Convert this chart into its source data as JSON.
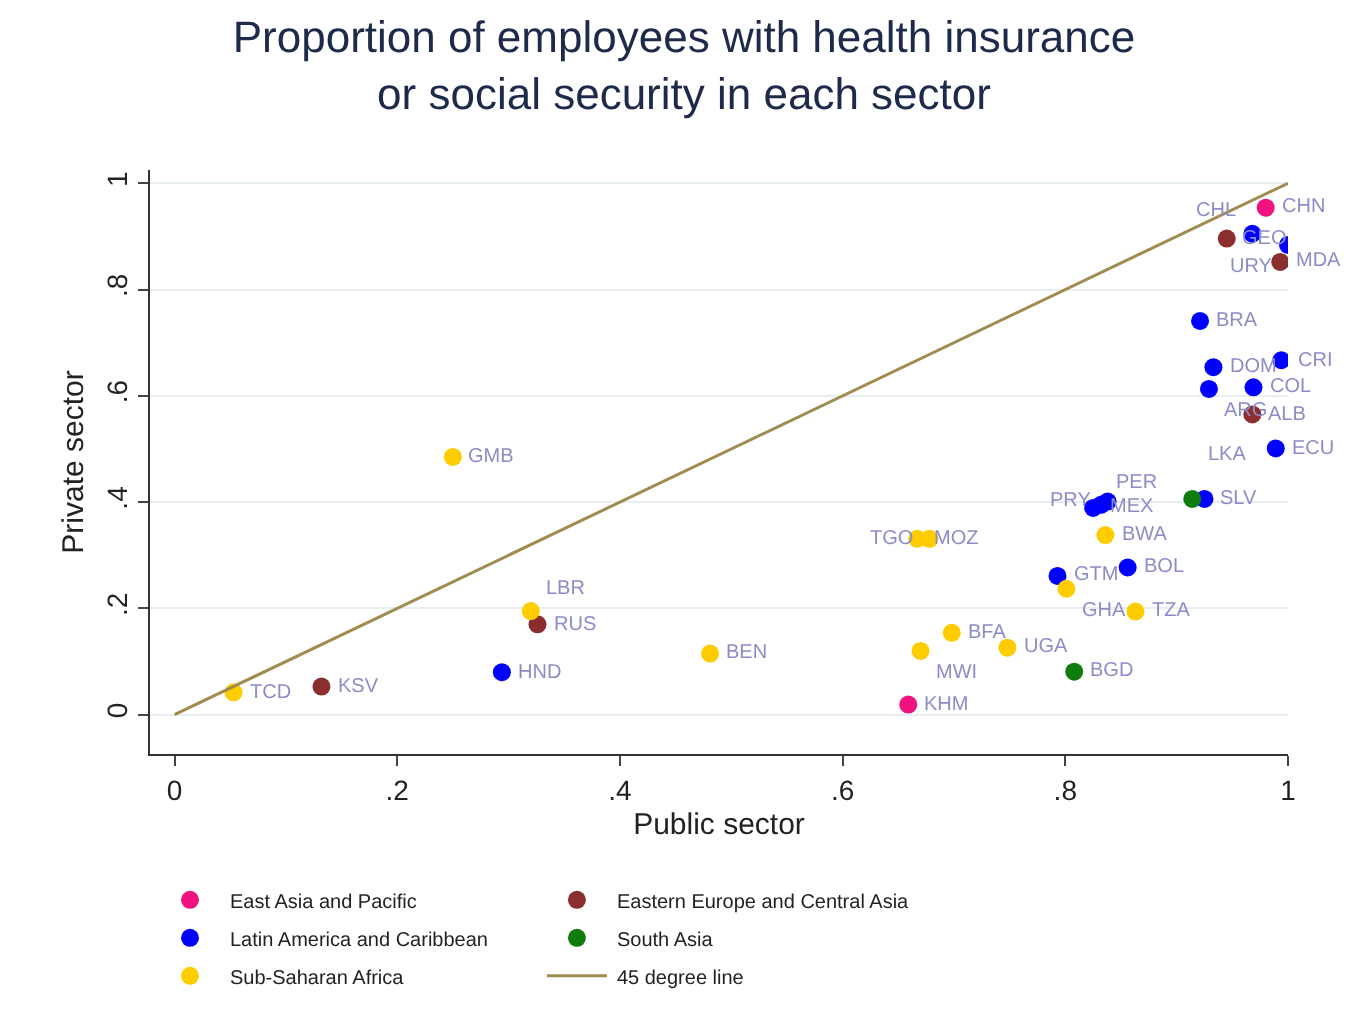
{
  "chart_data": {
    "type": "scatter",
    "title": "Proportion of employees with health insurance\nor social security in each sector",
    "xlabel": "Public sector",
    "ylabel": "Private sector",
    "xlim": [
      -0.022,
      1.0
    ],
    "ylim": [
      -0.074,
      1.025
    ],
    "xticks": [
      0,
      {
        "value": 0.2,
        "label": ".2"
      },
      {
        "value": 0.4,
        "label": ".4"
      },
      {
        "value": 0.6,
        "label": ".6"
      },
      {
        "value": 0.8,
        "label": ".8"
      },
      1
    ],
    "yticks": [
      0,
      {
        "value": 0.2,
        "label": ".2"
      },
      {
        "value": 0.4,
        "label": ".4"
      },
      {
        "value": 0.6,
        "label": ".6"
      },
      {
        "value": 0.8,
        "label": ".8"
      },
      1
    ],
    "grid": "y",
    "legend": "bottom",
    "marker": "circle",
    "series": [
      {
        "name": "East Asia and Pacific",
        "color": "#f0127f",
        "x": [
          0.98,
          0.659
        ],
        "values": [
          0.954,
          0.019
        ]
      },
      {
        "name": "Eastern Europe and Central Asia",
        "color": "#8b2e2e",
        "x": [
          0.945,
          0.993,
          0.968,
          0.326,
          0.132
        ],
        "values": [
          0.896,
          0.852,
          0.565,
          0.17,
          0.053
        ]
      },
      {
        "name": "Latin America and Caribbean",
        "color": "#0000ff",
        "x": [
          0.968,
          1.0,
          0.921,
          0.994,
          0.933,
          0.929,
          0.969,
          0.989,
          0.825,
          0.832,
          0.838,
          0.925,
          0.856,
          0.793,
          0.294
        ],
        "values": [
          0.905,
          0.884,
          0.741,
          0.667,
          0.654,
          0.613,
          0.616,
          0.501,
          0.389,
          0.395,
          0.401,
          0.406,
          0.277,
          0.261,
          0.08
        ]
      },
      {
        "name": "South Asia",
        "color": "#0e7d0e",
        "x": [
          0.914,
          0.808
        ],
        "values": [
          0.406,
          0.081
        ]
      },
      {
        "name": "Sub-Saharan Africa",
        "color": "#ffcc00",
        "x": [
          0.836,
          0.801,
          0.863,
          0.698,
          0.748,
          0.67,
          0.481,
          0.667,
          0.678,
          0.32,
          0.25,
          0.053
        ],
        "values": [
          0.338,
          0.237,
          0.194,
          0.154,
          0.126,
          0.12,
          0.115,
          0.331,
          0.331,
          0.195,
          0.485,
          0.042
        ]
      },
      {
        "name": "45 degree line",
        "type": "line",
        "marker": "none",
        "color": "#a08c50",
        "x": [
          0,
          1
        ],
        "values": [
          0,
          1
        ]
      }
    ],
    "annotations": [
      {
        "text": "CHN",
        "x": 0.98,
        "y": 0.954
      },
      {
        "text": "KHM",
        "x": 0.659,
        "y": 0.019
      },
      {
        "text": "GEO",
        "x": 0.945,
        "y": 0.896
      },
      {
        "text": "MDA",
        "x": 0.993,
        "y": 0.852
      },
      {
        "text": "ALB",
        "x": 0.968,
        "y": 0.565
      },
      {
        "text": "RUS",
        "x": 0.326,
        "y": 0.17
      },
      {
        "text": "KSV",
        "x": 0.132,
        "y": 0.053
      },
      {
        "text": "CHL",
        "x": 0.968,
        "y": 0.905
      },
      {
        "text": "URY",
        "x": 1.0,
        "y": 0.884
      },
      {
        "text": "BRA",
        "x": 0.921,
        "y": 0.741
      },
      {
        "text": "CRI",
        "x": 0.994,
        "y": 0.667
      },
      {
        "text": "DOM",
        "x": 0.933,
        "y": 0.654
      },
      {
        "text": "ARG",
        "x": 0.929,
        "y": 0.613
      },
      {
        "text": "COL",
        "x": 0.969,
        "y": 0.616
      },
      {
        "text": "ECU",
        "x": 0.989,
        "y": 0.501
      },
      {
        "text": "MEX",
        "x": 0.825,
        "y": 0.389
      },
      {
        "text": "PER",
        "x": 0.832,
        "y": 0.395
      },
      {
        "text": "PRY",
        "x": 0.838,
        "y": 0.401
      },
      {
        "text": "SLV",
        "x": 0.925,
        "y": 0.406
      },
      {
        "text": "BOL",
        "x": 0.856,
        "y": 0.277
      },
      {
        "text": "GTM",
        "x": 0.793,
        "y": 0.261
      },
      {
        "text": "HND",
        "x": 0.294,
        "y": 0.08
      },
      {
        "text": "LKA",
        "x": 0.914,
        "y": 0.406
      },
      {
        "text": "BGD",
        "x": 0.808,
        "y": 0.081
      },
      {
        "text": "BWA",
        "x": 0.836,
        "y": 0.338
      },
      {
        "text": "GHA",
        "x": 0.801,
        "y": 0.237
      },
      {
        "text": "TZA",
        "x": 0.863,
        "y": 0.194
      },
      {
        "text": "BFA",
        "x": 0.698,
        "y": 0.154
      },
      {
        "text": "UGA",
        "x": 0.748,
        "y": 0.126
      },
      {
        "text": "MWI",
        "x": 0.67,
        "y": 0.12
      },
      {
        "text": "BEN",
        "x": 0.481,
        "y": 0.115
      },
      {
        "text": "MOZ",
        "x": 0.667,
        "y": 0.331
      },
      {
        "text": "TGO",
        "x": 0.678,
        "y": 0.331
      },
      {
        "text": "LBR",
        "x": 0.32,
        "y": 0.195
      },
      {
        "text": "GMB",
        "x": 0.25,
        "y": 0.485
      },
      {
        "text": "TCD",
        "x": 0.053,
        "y": 0.042
      }
    ]
  }
}
